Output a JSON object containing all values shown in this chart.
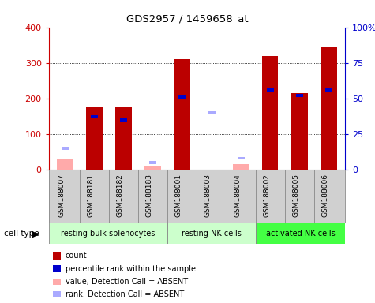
{
  "title": "GDS2957 / 1459658_at",
  "samples": [
    "GSM188007",
    "GSM188181",
    "GSM188182",
    "GSM188183",
    "GSM188001",
    "GSM188003",
    "GSM188004",
    "GSM188002",
    "GSM188005",
    "GSM188006"
  ],
  "count_present": [
    0,
    175,
    175,
    0,
    310,
    0,
    0,
    320,
    215,
    345
  ],
  "count_absent": [
    30,
    0,
    0,
    10,
    0,
    0,
    15,
    0,
    0,
    0
  ],
  "rank_present": [
    0,
    37,
    35,
    0,
    51,
    0,
    0,
    56,
    52,
    56
  ],
  "rank_absent": [
    15,
    0,
    0,
    5,
    0,
    40,
    8,
    0,
    0,
    0
  ],
  "is_absent": [
    true,
    false,
    false,
    true,
    false,
    true,
    true,
    false,
    false,
    false
  ],
  "cell_groups": [
    {
      "label": "resting bulk splenocytes",
      "start": 0,
      "end": 4,
      "color": "#ccffcc"
    },
    {
      "label": "resting NK cells",
      "start": 4,
      "end": 7,
      "color": "#ccffcc"
    },
    {
      "label": "activated NK cells",
      "start": 7,
      "end": 10,
      "color": "#66ff66"
    }
  ],
  "ylim_left": [
    0,
    400
  ],
  "ylim_right": [
    0,
    100
  ],
  "yticks_left": [
    0,
    100,
    200,
    300,
    400
  ],
  "yticks_right": [
    0,
    25,
    50,
    75,
    100
  ],
  "y2labels": [
    "0",
    "25",
    "50",
    "75",
    "100%"
  ],
  "left_axis_color": "#cc0000",
  "right_axis_color": "#0000cc",
  "bar_color_count": "#bb0000",
  "bar_color_rank": "#0000cc",
  "bar_color_absent_count": "#ffaaaa",
  "bar_color_absent_rank": "#aaaaff",
  "label_bg_color": "#d0d0d0",
  "group_bg_color1": "#ccffcc",
  "group_bg_color2": "#44ff44",
  "plot_bg_color": "#ffffff"
}
